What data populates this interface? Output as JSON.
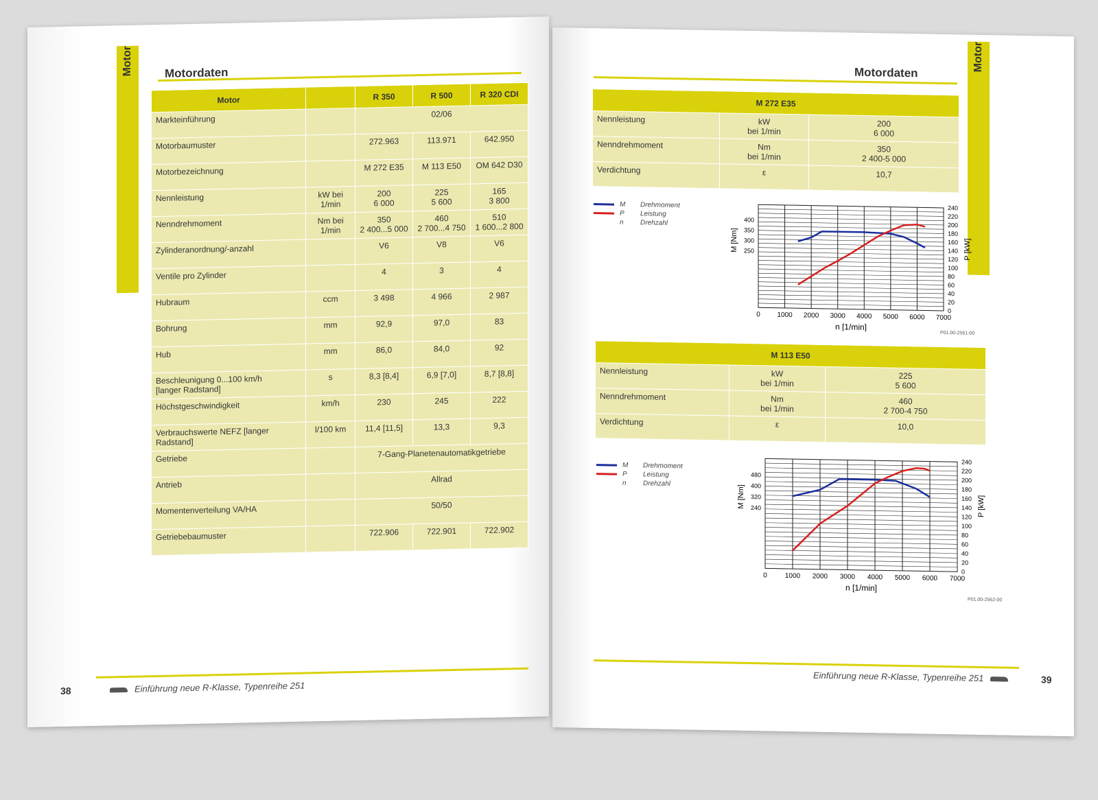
{
  "left_page": {
    "sidebar_label": "Motor",
    "section_title": "Motordaten",
    "table": {
      "headers": [
        "Motor",
        "",
        "R 350",
        "R 500",
        "R 320 CDI"
      ],
      "rows": [
        {
          "label": "Markteinführung",
          "unit": "",
          "span": true,
          "values": [
            "02/06"
          ]
        },
        {
          "label": "Motorbaumuster",
          "unit": "",
          "values": [
            "272.963",
            "113.971",
            "642.950"
          ]
        },
        {
          "label": "Motorbezeichnung",
          "unit": "",
          "values": [
            "M 272 E35",
            "M 113 E50",
            "OM 642 D30"
          ]
        },
        {
          "label": "Nennleistung",
          "unit": "kW bei\n1/min",
          "values": [
            "200\n6 000",
            "225\n5 600",
            "165\n3 800"
          ]
        },
        {
          "label": "Nenndrehmoment",
          "unit": "Nm bei\n1/min",
          "values": [
            "350\n2 400...5 000",
            "460\n2 700...4 750",
            "510\n1 600...2 800"
          ]
        },
        {
          "label": "Zylinderanordnung/-anzahl",
          "unit": "",
          "values": [
            "V6",
            "V8",
            "V6"
          ]
        },
        {
          "label": "Ventile pro Zylinder",
          "unit": "",
          "values": [
            "4",
            "3",
            "4"
          ]
        },
        {
          "label": "Hubraum",
          "unit": "ccm",
          "values": [
            "3 498",
            "4 966",
            "2 987"
          ]
        },
        {
          "label": "Bohrung",
          "unit": "mm",
          "values": [
            "92,9",
            "97,0",
            "83"
          ]
        },
        {
          "label": "Hub",
          "unit": "mm",
          "values": [
            "86,0",
            "84,0",
            "92"
          ]
        },
        {
          "label": "Beschleunigung 0...100 km/h\n[langer Radstand]",
          "unit": "s",
          "values": [
            "8,3 [8,4]",
            "6,9 [7,0]",
            "8,7 [8,8]"
          ]
        },
        {
          "label": "Höchstgeschwindigkeit",
          "unit": "km/h",
          "values": [
            "230",
            "245",
            "222"
          ]
        },
        {
          "label": "Verbrauchswerte NEFZ [langer Radstand]",
          "unit": "l/100 km",
          "values": [
            "11,4 [11,5]",
            "13,3",
            "9,3"
          ]
        },
        {
          "label": "Getriebe",
          "unit": "",
          "span": true,
          "values": [
            "7-Gang-Planetenautomatikgetriebe"
          ]
        },
        {
          "label": "Antrieb",
          "unit": "",
          "span": true,
          "values": [
            "Allrad"
          ]
        },
        {
          "label": "Momentenverteilung VA/HA",
          "unit": "",
          "span": true,
          "values": [
            "50/50"
          ]
        },
        {
          "label": "Getriebebaumuster",
          "unit": "",
          "values": [
            "722.906",
            "722.901",
            "722.902"
          ]
        }
      ]
    },
    "page_number": "38",
    "footer": "Einführung neue R-Klasse, Typenreihe 251"
  },
  "right_page": {
    "sidebar_label": "Motor",
    "section_title": "Motordaten",
    "page_number": "39",
    "footer": "Einführung neue R-Klasse, Typenreihe 251",
    "engines": [
      {
        "title": "M 272 E35",
        "rows": [
          {
            "label": "Nennleistung",
            "unit": "kW\nbei 1/min",
            "value": "200\n6 000"
          },
          {
            "label": "Nenndrehmoment",
            "unit": "Nm\nbei 1/min",
            "value": "350\n2 400-5 000"
          },
          {
            "label": "Verdichtung",
            "unit": "ε",
            "value": "10,7"
          }
        ],
        "code": "P01.00-2561-00"
      },
      {
        "title": "M 113 E50",
        "rows": [
          {
            "label": "Nennleistung",
            "unit": "kW\nbei 1/min",
            "value": "225\n5 600"
          },
          {
            "label": "Nenndrehmoment",
            "unit": "Nm\nbei 1/min",
            "value": "460\n2 700-4 750"
          },
          {
            "label": "Verdichtung",
            "unit": "ε",
            "value": "10,0"
          }
        ],
        "code": "P01.00-2562-00"
      }
    ],
    "legend": [
      {
        "key": "M",
        "label": "Drehmoment",
        "color": "#1b2f9e"
      },
      {
        "key": "P",
        "label": "Leistung",
        "color": "#d62020"
      },
      {
        "key": "n",
        "label": "Drehzahl",
        "color": ""
      }
    ]
  },
  "chart_data": [
    {
      "type": "line",
      "xlabel": "n [1/min]",
      "ylabel_left": "M [Nm]",
      "ylabel_right": "P [kW]",
      "x_ticks": [
        0,
        1000,
        2000,
        3000,
        4000,
        5000,
        6000,
        7000
      ],
      "y_left_ticks": [
        250,
        300,
        350,
        400
      ],
      "y_right_ticks": [
        0,
        20,
        40,
        60,
        80,
        100,
        120,
        140,
        160,
        180,
        200,
        220,
        240
      ],
      "xlim": [
        0,
        7000
      ],
      "ylim_right": [
        0,
        240
      ],
      "grid": true,
      "series": [
        {
          "name": "Drehmoment",
          "axis": "left",
          "color": "#1b2f9e",
          "x": [
            1500,
            2000,
            2400,
            3000,
            4000,
            5000,
            5500,
            6000,
            6300
          ],
          "y": [
            300,
            320,
            350,
            350,
            350,
            345,
            330,
            300,
            280
          ]
        },
        {
          "name": "Leistung",
          "axis": "right",
          "color": "#d62020",
          "x": [
            1500,
            2000,
            2500,
            3000,
            3500,
            4000,
            4500,
            5000,
            5500,
            6000,
            6300
          ],
          "y": [
            55,
            75,
            95,
            112,
            130,
            150,
            170,
            185,
            198,
            200,
            195
          ]
        }
      ]
    },
    {
      "type": "line",
      "xlabel": "n [1/min]",
      "ylabel_left": "M [Nm]",
      "ylabel_right": "P [kW]",
      "x_ticks": [
        0,
        1000,
        2000,
        3000,
        4000,
        5000,
        6000,
        7000
      ],
      "y_left_ticks": [
        240,
        320,
        400,
        480
      ],
      "y_right_ticks": [
        0,
        20,
        40,
        60,
        80,
        100,
        120,
        140,
        160,
        180,
        200,
        220,
        240
      ],
      "xlim": [
        0,
        7000
      ],
      "ylim_right": [
        0,
        240
      ],
      "grid": true,
      "series": [
        {
          "name": "Drehmoment",
          "axis": "left",
          "color": "#1b2f9e",
          "x": [
            1000,
            2000,
            2700,
            3000,
            4000,
            4750,
            5500,
            6000
          ],
          "y": [
            330,
            380,
            460,
            460,
            460,
            455,
            400,
            340
          ]
        },
        {
          "name": "Leistung",
          "axis": "right",
          "color": "#d62020",
          "x": [
            1000,
            1500,
            2000,
            2500,
            3000,
            3500,
            4000,
            4500,
            5000,
            5500,
            5800,
            6000
          ],
          "y": [
            40,
            70,
            100,
            120,
            140,
            165,
            190,
            205,
            218,
            225,
            224,
            220
          ]
        }
      ]
    }
  ]
}
